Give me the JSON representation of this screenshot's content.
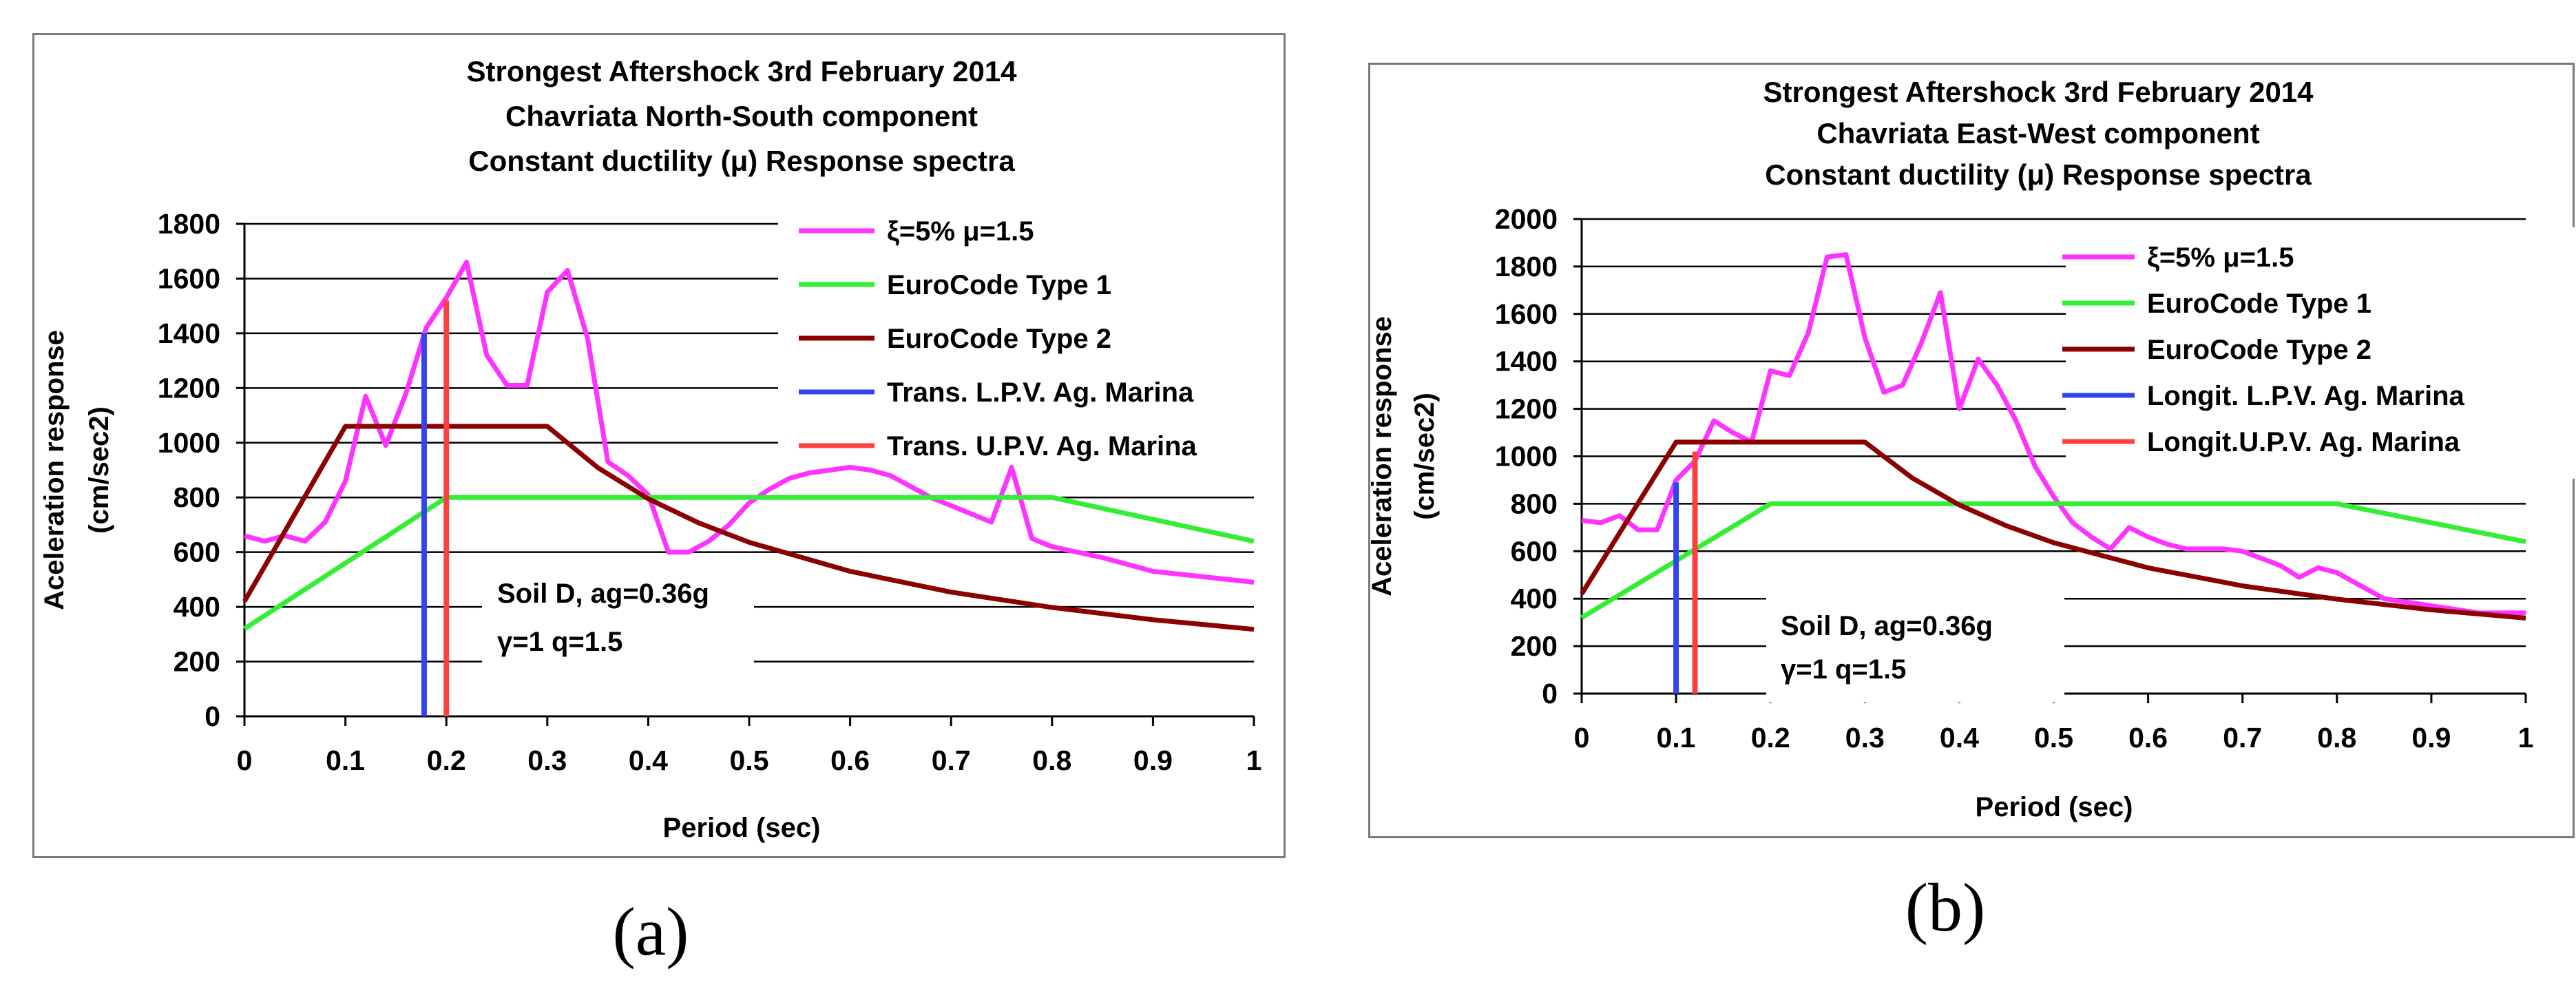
{
  "colors": {
    "magenta": "#FF33FF",
    "green": "#33EE33",
    "darkred": "#8B0000",
    "blue": "#3344EE",
    "red": "#FF4040",
    "grid": "#000000"
  },
  "chart_data": [
    {
      "type": "line",
      "panel_label": "(a)",
      "title": [
        "Strongest Aftershock  3rd February 2014",
        "Chavriata North-South component",
        "Constant ductility (μ) Response spectra"
      ],
      "xlabel": "Period (sec)",
      "ylabel": [
        "Aceleration response",
        "(cm/sec2)"
      ],
      "xlim": [
        0,
        1
      ],
      "ylim": [
        0,
        1800
      ],
      "xticks": [
        "0",
        "0.1",
        "0.2",
        "0.3",
        "0.4",
        "0.5",
        "0.6",
        "0.7",
        "0.8",
        "0.9",
        "1"
      ],
      "yticks": [
        "0",
        "200",
        "400",
        "600",
        "800",
        "1000",
        "1200",
        "1400",
        "1600",
        "1800"
      ],
      "annotation": [
        "Soil D, ag=0.36g",
        "γ=1   q=1.5"
      ],
      "series": [
        {
          "name": "ξ=5% μ=1.5",
          "color": "#FF33FF",
          "x": [
            0,
            0.02,
            0.04,
            0.06,
            0.08,
            0.1,
            0.12,
            0.14,
            0.16,
            0.18,
            0.2,
            0.22,
            0.24,
            0.26,
            0.28,
            0.3,
            0.32,
            0.34,
            0.36,
            0.38,
            0.4,
            0.42,
            0.44,
            0.46,
            0.48,
            0.5,
            0.52,
            0.54,
            0.56,
            0.58,
            0.6,
            0.62,
            0.64,
            0.66,
            0.68,
            0.7,
            0.72,
            0.74,
            0.76,
            0.78,
            0.8,
            0.85,
            0.9,
            0.95,
            1.0
          ],
          "y": [
            660,
            640,
            660,
            640,
            710,
            860,
            1170,
            990,
            1180,
            1420,
            1530,
            1660,
            1320,
            1210,
            1210,
            1550,
            1630,
            1380,
            930,
            880,
            810,
            600,
            600,
            640,
            700,
            780,
            830,
            870,
            890,
            900,
            910,
            900,
            880,
            840,
            800,
            770,
            740,
            710,
            910,
            650,
            620,
            580,
            530,
            510,
            490
          ]
        },
        {
          "name": "EuroCode Type 1",
          "color": "#33EE33",
          "x": [
            0,
            0.05,
            0.1,
            0.15,
            0.2,
            0.8,
            0.9,
            1.0
          ],
          "y": [
            320,
            440,
            560,
            680,
            800,
            800,
            720,
            640
          ]
        },
        {
          "name": "EuroCode Type 2",
          "color": "#8B0000",
          "x": [
            0,
            0.1,
            0.3,
            0.35,
            0.4,
            0.45,
            0.5,
            0.6,
            0.7,
            0.8,
            0.9,
            1.0
          ],
          "y": [
            420,
            1060,
            1060,
            909,
            795,
            707,
            636,
            530,
            454,
            398,
            353,
            318
          ]
        },
        {
          "name": "Trans. L.P.V. Ag. Marina",
          "color": "#3344EE",
          "x": [
            0.178,
            0.178
          ],
          "y": [
            0,
            1400
          ]
        },
        {
          "name": "Trans. U.P.V. Ag. Marina",
          "color": "#FF4040",
          "x": [
            0.2,
            0.2
          ],
          "y": [
            0,
            1520
          ]
        }
      ]
    },
    {
      "type": "line",
      "panel_label": "(b)",
      "title": [
        "Strongest Aftershock  3rd February 2014",
        "Chavriata  East-West component",
        "Constant ductility (μ) Response spectra"
      ],
      "xlabel": "Period (sec)",
      "ylabel": [
        "Aceleration response",
        "(cm/sec2)"
      ],
      "xlim": [
        0,
        1
      ],
      "ylim": [
        0,
        2000
      ],
      "xticks": [
        "0",
        "0.1",
        "0.2",
        "0.3",
        "0.4",
        "0.5",
        "0.6",
        "0.7",
        "0.8",
        "0.9",
        "1"
      ],
      "yticks": [
        "0",
        "200",
        "400",
        "600",
        "800",
        "1000",
        "1200",
        "1400",
        "1600",
        "1800",
        "2000"
      ],
      "annotation": [
        "Soil D, ag=0.36g",
        "γ=1   q=1.5"
      ],
      "series": [
        {
          "name": "ξ=5% μ=1.5",
          "color": "#FF33FF",
          "x": [
            0,
            0.02,
            0.04,
            0.06,
            0.08,
            0.1,
            0.12,
            0.14,
            0.16,
            0.18,
            0.2,
            0.22,
            0.24,
            0.26,
            0.28,
            0.3,
            0.32,
            0.34,
            0.36,
            0.38,
            0.4,
            0.42,
            0.44,
            0.46,
            0.48,
            0.5,
            0.52,
            0.54,
            0.56,
            0.58,
            0.6,
            0.62,
            0.64,
            0.66,
            0.68,
            0.7,
            0.72,
            0.74,
            0.76,
            0.78,
            0.8,
            0.85,
            0.9,
            0.95,
            1.0
          ],
          "y": [
            730,
            720,
            750,
            690,
            690,
            900,
            980,
            1150,
            1100,
            1060,
            1360,
            1340,
            1520,
            1840,
            1850,
            1500,
            1270,
            1300,
            1480,
            1690,
            1200,
            1410,
            1300,
            1150,
            960,
            830,
            720,
            660,
            610,
            700,
            660,
            630,
            610,
            610,
            610,
            600,
            570,
            540,
            490,
            530,
            510,
            400,
            370,
            340,
            340
          ]
        },
        {
          "name": "EuroCode Type 1",
          "color": "#33EE33",
          "x": [
            0,
            0.05,
            0.1,
            0.15,
            0.2,
            0.8,
            0.9,
            1.0
          ],
          "y": [
            320,
            440,
            560,
            680,
            800,
            800,
            720,
            640
          ]
        },
        {
          "name": "EuroCode Type 2",
          "color": "#8B0000",
          "x": [
            0,
            0.1,
            0.3,
            0.35,
            0.4,
            0.45,
            0.5,
            0.6,
            0.7,
            0.8,
            0.9,
            1.0
          ],
          "y": [
            420,
            1060,
            1060,
            909,
            795,
            707,
            636,
            530,
            454,
            398,
            353,
            318
          ]
        },
        {
          "name": "Longit. L.P.V. Ag. Marina",
          "color": "#3344EE",
          "x": [
            0.1,
            0.1
          ],
          "y": [
            0,
            890
          ]
        },
        {
          "name": "Longit.U.P.V. Ag. Marina",
          "color": "#FF4040",
          "x": [
            0.12,
            0.12
          ],
          "y": [
            0,
            1020
          ]
        }
      ]
    }
  ]
}
